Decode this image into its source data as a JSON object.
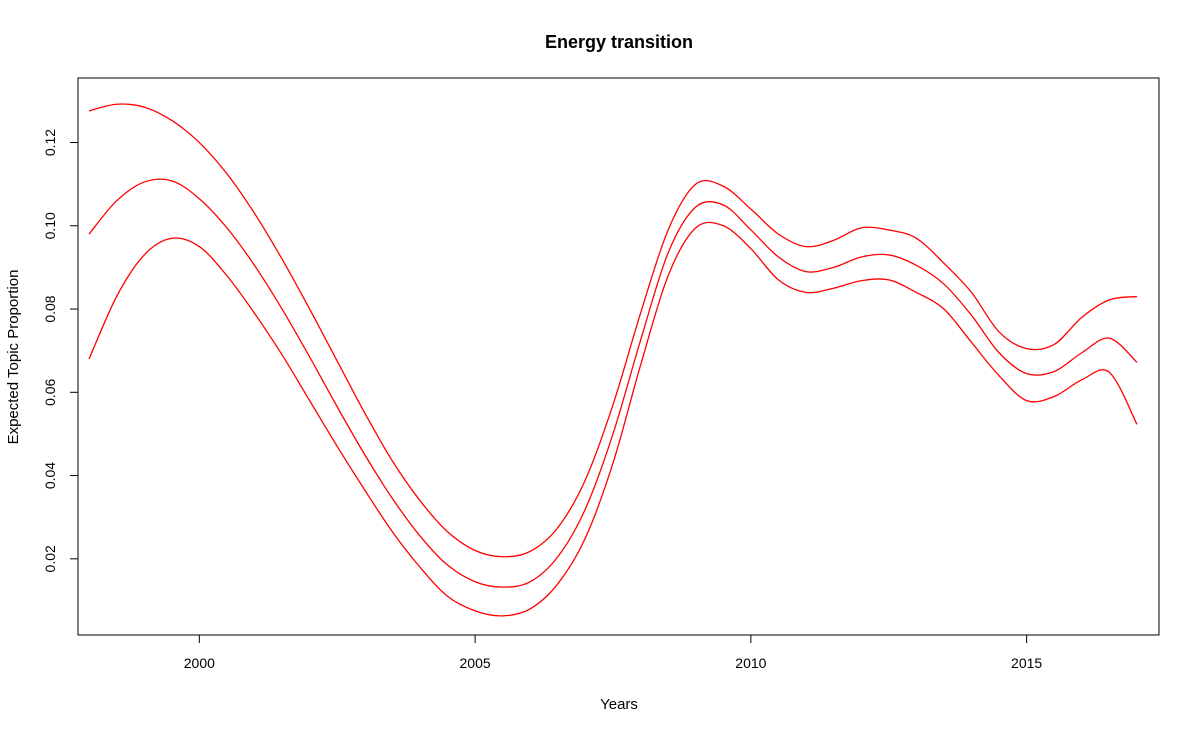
{
  "chart_data": {
    "type": "line",
    "title": "Energy transition",
    "xlabel": "Years",
    "ylabel": "Expected Topic Proportion",
    "xlim": [
      1997.8,
      2017.4
    ],
    "ylim": [
      0.0017,
      0.1355
    ],
    "xticks": [
      2000,
      2005,
      2010,
      2015
    ],
    "yticks": [
      0.02,
      0.04,
      0.06,
      0.08,
      0.1,
      0.12
    ],
    "ytick_labels": [
      "0.02",
      "0.04",
      "0.06",
      "0.08",
      "0.10",
      "0.12"
    ],
    "line_color": "#ff0000",
    "x": [
      1998,
      1998.5,
      1999,
      1999.5,
      2000,
      2000.5,
      2001,
      2001.5,
      2002,
      2002.5,
      2003,
      2003.5,
      2004,
      2004.5,
      2005,
      2005.5,
      2006,
      2006.5,
      2007,
      2007.5,
      2008,
      2008.5,
      2009,
      2009.5,
      2010,
      2010.5,
      2011,
      2011.5,
      2012,
      2012.5,
      2013,
      2013.5,
      2014,
      2014.5,
      2015,
      2015.5,
      2016,
      2016.5,
      2017
    ],
    "series": [
      {
        "values": [
          0.1276,
          0.1292,
          0.1285,
          0.1253,
          0.12,
          0.1125,
          0.103,
          0.092,
          0.08,
          0.0675,
          0.055,
          0.0435,
          0.034,
          0.0265,
          0.022,
          0.0205,
          0.0218,
          0.0275,
          0.039,
          0.057,
          0.079,
          0.099,
          0.11,
          0.1095,
          0.104,
          0.098,
          0.095,
          0.0965,
          0.0995,
          0.099,
          0.097,
          0.091,
          0.084,
          0.0745,
          0.0705,
          0.0715,
          0.078,
          0.0822,
          0.083
        ]
      },
      {
        "values": [
          0.098,
          0.106,
          0.1105,
          0.1108,
          0.1065,
          0.0995,
          0.0905,
          0.08,
          0.0685,
          0.0565,
          0.045,
          0.0345,
          0.0255,
          0.0185,
          0.0145,
          0.0132,
          0.0145,
          0.0205,
          0.032,
          0.05,
          0.0725,
          0.0935,
          0.1045,
          0.105,
          0.099,
          0.0925,
          0.089,
          0.09,
          0.0925,
          0.093,
          0.0905,
          0.086,
          0.0785,
          0.0695,
          0.0645,
          0.065,
          0.0695,
          0.073,
          0.0672
        ]
      },
      {
        "values": [
          0.068,
          0.083,
          0.093,
          0.097,
          0.095,
          0.088,
          0.079,
          0.069,
          0.058,
          0.047,
          0.0365,
          0.0265,
          0.018,
          0.011,
          0.0075,
          0.0063,
          0.008,
          0.014,
          0.025,
          0.043,
          0.0665,
          0.088,
          0.0995,
          0.1,
          0.0945,
          0.087,
          0.084,
          0.085,
          0.0868,
          0.087,
          0.084,
          0.08,
          0.072,
          0.064,
          0.058,
          0.059,
          0.063,
          0.0648,
          0.0523
        ]
      }
    ],
    "grid": false,
    "legend": "none"
  }
}
